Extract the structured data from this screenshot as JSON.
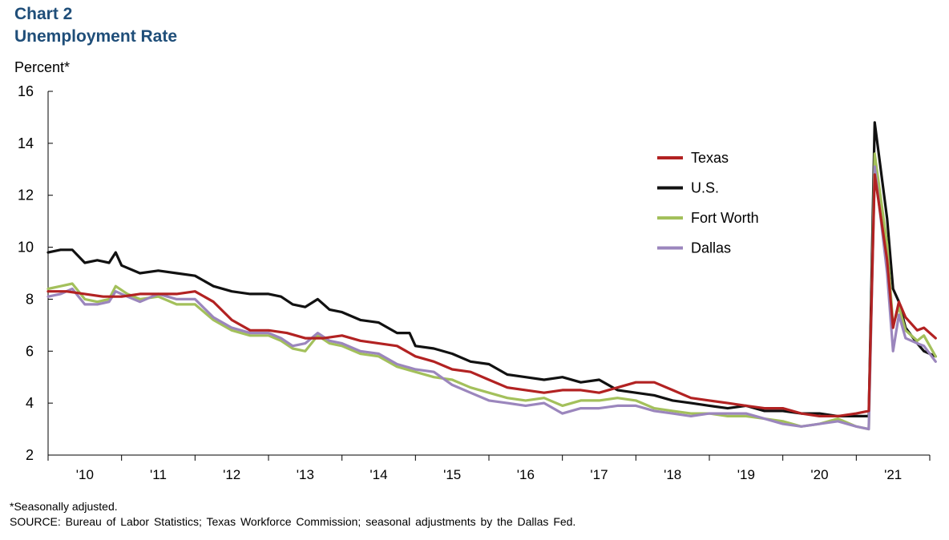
{
  "header": {
    "chart_number": "Chart 2",
    "title": "Unemployment Rate"
  },
  "footer": {
    "note": "*Seasonally adjusted.",
    "source": "SOURCE: Bureau of Labor Statistics; Texas Workforce Commission; seasonal adjustments by the Dallas Fed."
  },
  "chart_data": {
    "type": "line",
    "title": "Unemployment Rate",
    "ylabel": "Percent*",
    "xlabel": "",
    "ylim": [
      2,
      16
    ],
    "yticks": [
      "16",
      "14",
      "12",
      "10",
      "8",
      "6",
      "4",
      "2"
    ],
    "xlim": [
      2009.5,
      2021.5
    ],
    "x_tick_labels": [
      "'10",
      "'11",
      "'12",
      "'13",
      "'14",
      "'15",
      "'16",
      "'17",
      "'18",
      "'19",
      "'20",
      "'21"
    ],
    "grid": false,
    "legend_position": "right",
    "series": [
      {
        "name": "Texas",
        "color": "#b22222",
        "points": [
          [
            2009.5,
            8.3
          ],
          [
            2009.75,
            8.3
          ],
          [
            2010.0,
            8.2
          ],
          [
            2010.25,
            8.1
          ],
          [
            2010.5,
            8.1
          ],
          [
            2010.75,
            8.2
          ],
          [
            2011.0,
            8.2
          ],
          [
            2011.25,
            8.2
          ],
          [
            2011.5,
            8.3
          ],
          [
            2011.75,
            7.9
          ],
          [
            2012.0,
            7.2
          ],
          [
            2012.25,
            6.8
          ],
          [
            2012.5,
            6.8
          ],
          [
            2012.75,
            6.7
          ],
          [
            2013.0,
            6.5
          ],
          [
            2013.25,
            6.5
          ],
          [
            2013.5,
            6.6
          ],
          [
            2013.75,
            6.4
          ],
          [
            2014.0,
            6.3
          ],
          [
            2014.25,
            6.2
          ],
          [
            2014.5,
            5.8
          ],
          [
            2014.75,
            5.6
          ],
          [
            2015.0,
            5.3
          ],
          [
            2015.25,
            5.2
          ],
          [
            2015.5,
            4.9
          ],
          [
            2015.75,
            4.6
          ],
          [
            2016.0,
            4.5
          ],
          [
            2016.25,
            4.4
          ],
          [
            2016.5,
            4.5
          ],
          [
            2016.75,
            4.5
          ],
          [
            2017.0,
            4.4
          ],
          [
            2017.25,
            4.6
          ],
          [
            2017.5,
            4.8
          ],
          [
            2017.75,
            4.8
          ],
          [
            2018.0,
            4.5
          ],
          [
            2018.25,
            4.2
          ],
          [
            2018.5,
            4.1
          ],
          [
            2018.75,
            4.0
          ],
          [
            2019.0,
            3.9
          ],
          [
            2019.25,
            3.8
          ],
          [
            2019.5,
            3.8
          ],
          [
            2019.75,
            3.6
          ],
          [
            2020.0,
            3.5
          ],
          [
            2020.25,
            3.5
          ],
          [
            2020.5,
            3.6
          ],
          [
            2020.67,
            3.7
          ],
          [
            2020.75,
            12.8
          ],
          [
            2020.92,
            9.5
          ],
          [
            2021.0,
            6.9
          ],
          [
            2021.08,
            7.9
          ],
          [
            2021.17,
            7.3
          ],
          [
            2021.33,
            6.8
          ],
          [
            2021.42,
            6.9
          ],
          [
            2021.58,
            6.5
          ]
        ]
      },
      {
        "name": "U.S.",
        "color": "#111111",
        "points": [
          [
            2009.5,
            9.8
          ],
          [
            2009.67,
            9.9
          ],
          [
            2009.83,
            9.9
          ],
          [
            2010.0,
            9.4
          ],
          [
            2010.17,
            9.5
          ],
          [
            2010.33,
            9.4
          ],
          [
            2010.42,
            9.8
          ],
          [
            2010.5,
            9.3
          ],
          [
            2010.75,
            9.0
          ],
          [
            2011.0,
            9.1
          ],
          [
            2011.25,
            9.0
          ],
          [
            2011.5,
            8.9
          ],
          [
            2011.75,
            8.5
          ],
          [
            2012.0,
            8.3
          ],
          [
            2012.25,
            8.2
          ],
          [
            2012.5,
            8.2
          ],
          [
            2012.67,
            8.1
          ],
          [
            2012.83,
            7.8
          ],
          [
            2013.0,
            7.7
          ],
          [
            2013.17,
            8.0
          ],
          [
            2013.33,
            7.6
          ],
          [
            2013.5,
            7.5
          ],
          [
            2013.75,
            7.2
          ],
          [
            2014.0,
            7.1
          ],
          [
            2014.25,
            6.7
          ],
          [
            2014.42,
            6.7
          ],
          [
            2014.5,
            6.2
          ],
          [
            2014.75,
            6.1
          ],
          [
            2015.0,
            5.9
          ],
          [
            2015.25,
            5.6
          ],
          [
            2015.5,
            5.5
          ],
          [
            2015.75,
            5.1
          ],
          [
            2016.0,
            5.0
          ],
          [
            2016.25,
            4.9
          ],
          [
            2016.5,
            5.0
          ],
          [
            2016.75,
            4.8
          ],
          [
            2017.0,
            4.9
          ],
          [
            2017.25,
            4.5
          ],
          [
            2017.5,
            4.4
          ],
          [
            2017.75,
            4.3
          ],
          [
            2018.0,
            4.1
          ],
          [
            2018.25,
            4.0
          ],
          [
            2018.5,
            3.9
          ],
          [
            2018.75,
            3.8
          ],
          [
            2019.0,
            3.9
          ],
          [
            2019.25,
            3.7
          ],
          [
            2019.5,
            3.7
          ],
          [
            2019.75,
            3.6
          ],
          [
            2020.0,
            3.6
          ],
          [
            2020.25,
            3.5
          ],
          [
            2020.5,
            3.5
          ],
          [
            2020.67,
            3.5
          ],
          [
            2020.75,
            14.8
          ],
          [
            2020.92,
            11.1
          ],
          [
            2021.0,
            8.4
          ],
          [
            2021.08,
            7.9
          ],
          [
            2021.17,
            6.9
          ],
          [
            2021.33,
            6.3
          ],
          [
            2021.42,
            6.0
          ],
          [
            2021.58,
            5.8
          ]
        ]
      },
      {
        "name": "Fort Worth",
        "color": "#a3c05b",
        "points": [
          [
            2009.5,
            8.4
          ],
          [
            2009.67,
            8.5
          ],
          [
            2009.83,
            8.6
          ],
          [
            2010.0,
            8.0
          ],
          [
            2010.17,
            7.9
          ],
          [
            2010.33,
            8.0
          ],
          [
            2010.42,
            8.5
          ],
          [
            2010.58,
            8.2
          ],
          [
            2010.75,
            8.0
          ],
          [
            2011.0,
            8.1
          ],
          [
            2011.25,
            7.8
          ],
          [
            2011.5,
            7.8
          ],
          [
            2011.75,
            7.2
          ],
          [
            2012.0,
            6.8
          ],
          [
            2012.25,
            6.6
          ],
          [
            2012.5,
            6.6
          ],
          [
            2012.67,
            6.4
          ],
          [
            2012.83,
            6.1
          ],
          [
            2013.0,
            6.0
          ],
          [
            2013.17,
            6.6
          ],
          [
            2013.33,
            6.3
          ],
          [
            2013.5,
            6.2
          ],
          [
            2013.75,
            5.9
          ],
          [
            2014.0,
            5.8
          ],
          [
            2014.25,
            5.4
          ],
          [
            2014.5,
            5.2
          ],
          [
            2014.75,
            5.0
          ],
          [
            2015.0,
            4.9
          ],
          [
            2015.25,
            4.6
          ],
          [
            2015.5,
            4.4
          ],
          [
            2015.75,
            4.2
          ],
          [
            2016.0,
            4.1
          ],
          [
            2016.25,
            4.2
          ],
          [
            2016.5,
            3.9
          ],
          [
            2016.75,
            4.1
          ],
          [
            2017.0,
            4.1
          ],
          [
            2017.25,
            4.2
          ],
          [
            2017.5,
            4.1
          ],
          [
            2017.75,
            3.8
          ],
          [
            2018.0,
            3.7
          ],
          [
            2018.25,
            3.6
          ],
          [
            2018.5,
            3.6
          ],
          [
            2018.75,
            3.5
          ],
          [
            2019.0,
            3.5
          ],
          [
            2019.25,
            3.4
          ],
          [
            2019.5,
            3.3
          ],
          [
            2019.75,
            3.1
          ],
          [
            2020.0,
            3.2
          ],
          [
            2020.25,
            3.4
          ],
          [
            2020.5,
            3.1
          ],
          [
            2020.67,
            3.0
          ],
          [
            2020.75,
            13.6
          ],
          [
            2020.92,
            10.1
          ],
          [
            2021.0,
            7.0
          ],
          [
            2021.08,
            7.7
          ],
          [
            2021.17,
            6.8
          ],
          [
            2021.33,
            6.4
          ],
          [
            2021.42,
            6.6
          ],
          [
            2021.58,
            5.8
          ]
        ]
      },
      {
        "name": "Dallas",
        "color": "#9b86bd",
        "points": [
          [
            2009.5,
            8.1
          ],
          [
            2009.67,
            8.2
          ],
          [
            2009.83,
            8.4
          ],
          [
            2010.0,
            7.8
          ],
          [
            2010.17,
            7.8
          ],
          [
            2010.33,
            7.9
          ],
          [
            2010.42,
            8.3
          ],
          [
            2010.58,
            8.1
          ],
          [
            2010.75,
            7.9
          ],
          [
            2011.0,
            8.2
          ],
          [
            2011.25,
            8.0
          ],
          [
            2011.5,
            8.0
          ],
          [
            2011.75,
            7.3
          ],
          [
            2012.0,
            6.9
          ],
          [
            2012.25,
            6.7
          ],
          [
            2012.5,
            6.7
          ],
          [
            2012.67,
            6.5
          ],
          [
            2012.83,
            6.2
          ],
          [
            2013.0,
            6.3
          ],
          [
            2013.17,
            6.7
          ],
          [
            2013.33,
            6.4
          ],
          [
            2013.5,
            6.3
          ],
          [
            2013.75,
            6.0
          ],
          [
            2014.0,
            5.9
          ],
          [
            2014.25,
            5.5
          ],
          [
            2014.5,
            5.3
          ],
          [
            2014.75,
            5.2
          ],
          [
            2015.0,
            4.7
          ],
          [
            2015.25,
            4.4
          ],
          [
            2015.5,
            4.1
          ],
          [
            2015.75,
            4.0
          ],
          [
            2016.0,
            3.9
          ],
          [
            2016.25,
            4.0
          ],
          [
            2016.5,
            3.6
          ],
          [
            2016.75,
            3.8
          ],
          [
            2017.0,
            3.8
          ],
          [
            2017.25,
            3.9
          ],
          [
            2017.5,
            3.9
          ],
          [
            2017.75,
            3.7
          ],
          [
            2018.0,
            3.6
          ],
          [
            2018.25,
            3.5
          ],
          [
            2018.5,
            3.6
          ],
          [
            2018.75,
            3.6
          ],
          [
            2019.0,
            3.6
          ],
          [
            2019.25,
            3.4
          ],
          [
            2019.5,
            3.2
          ],
          [
            2019.75,
            3.1
          ],
          [
            2020.0,
            3.2
          ],
          [
            2020.25,
            3.3
          ],
          [
            2020.5,
            3.1
          ],
          [
            2020.67,
            3.0
          ],
          [
            2020.75,
            13.1
          ],
          [
            2020.92,
            9.0
          ],
          [
            2021.0,
            6.0
          ],
          [
            2021.08,
            7.4
          ],
          [
            2021.17,
            6.5
          ],
          [
            2021.33,
            6.3
          ],
          [
            2021.42,
            6.2
          ],
          [
            2021.58,
            5.6
          ]
        ]
      }
    ]
  }
}
